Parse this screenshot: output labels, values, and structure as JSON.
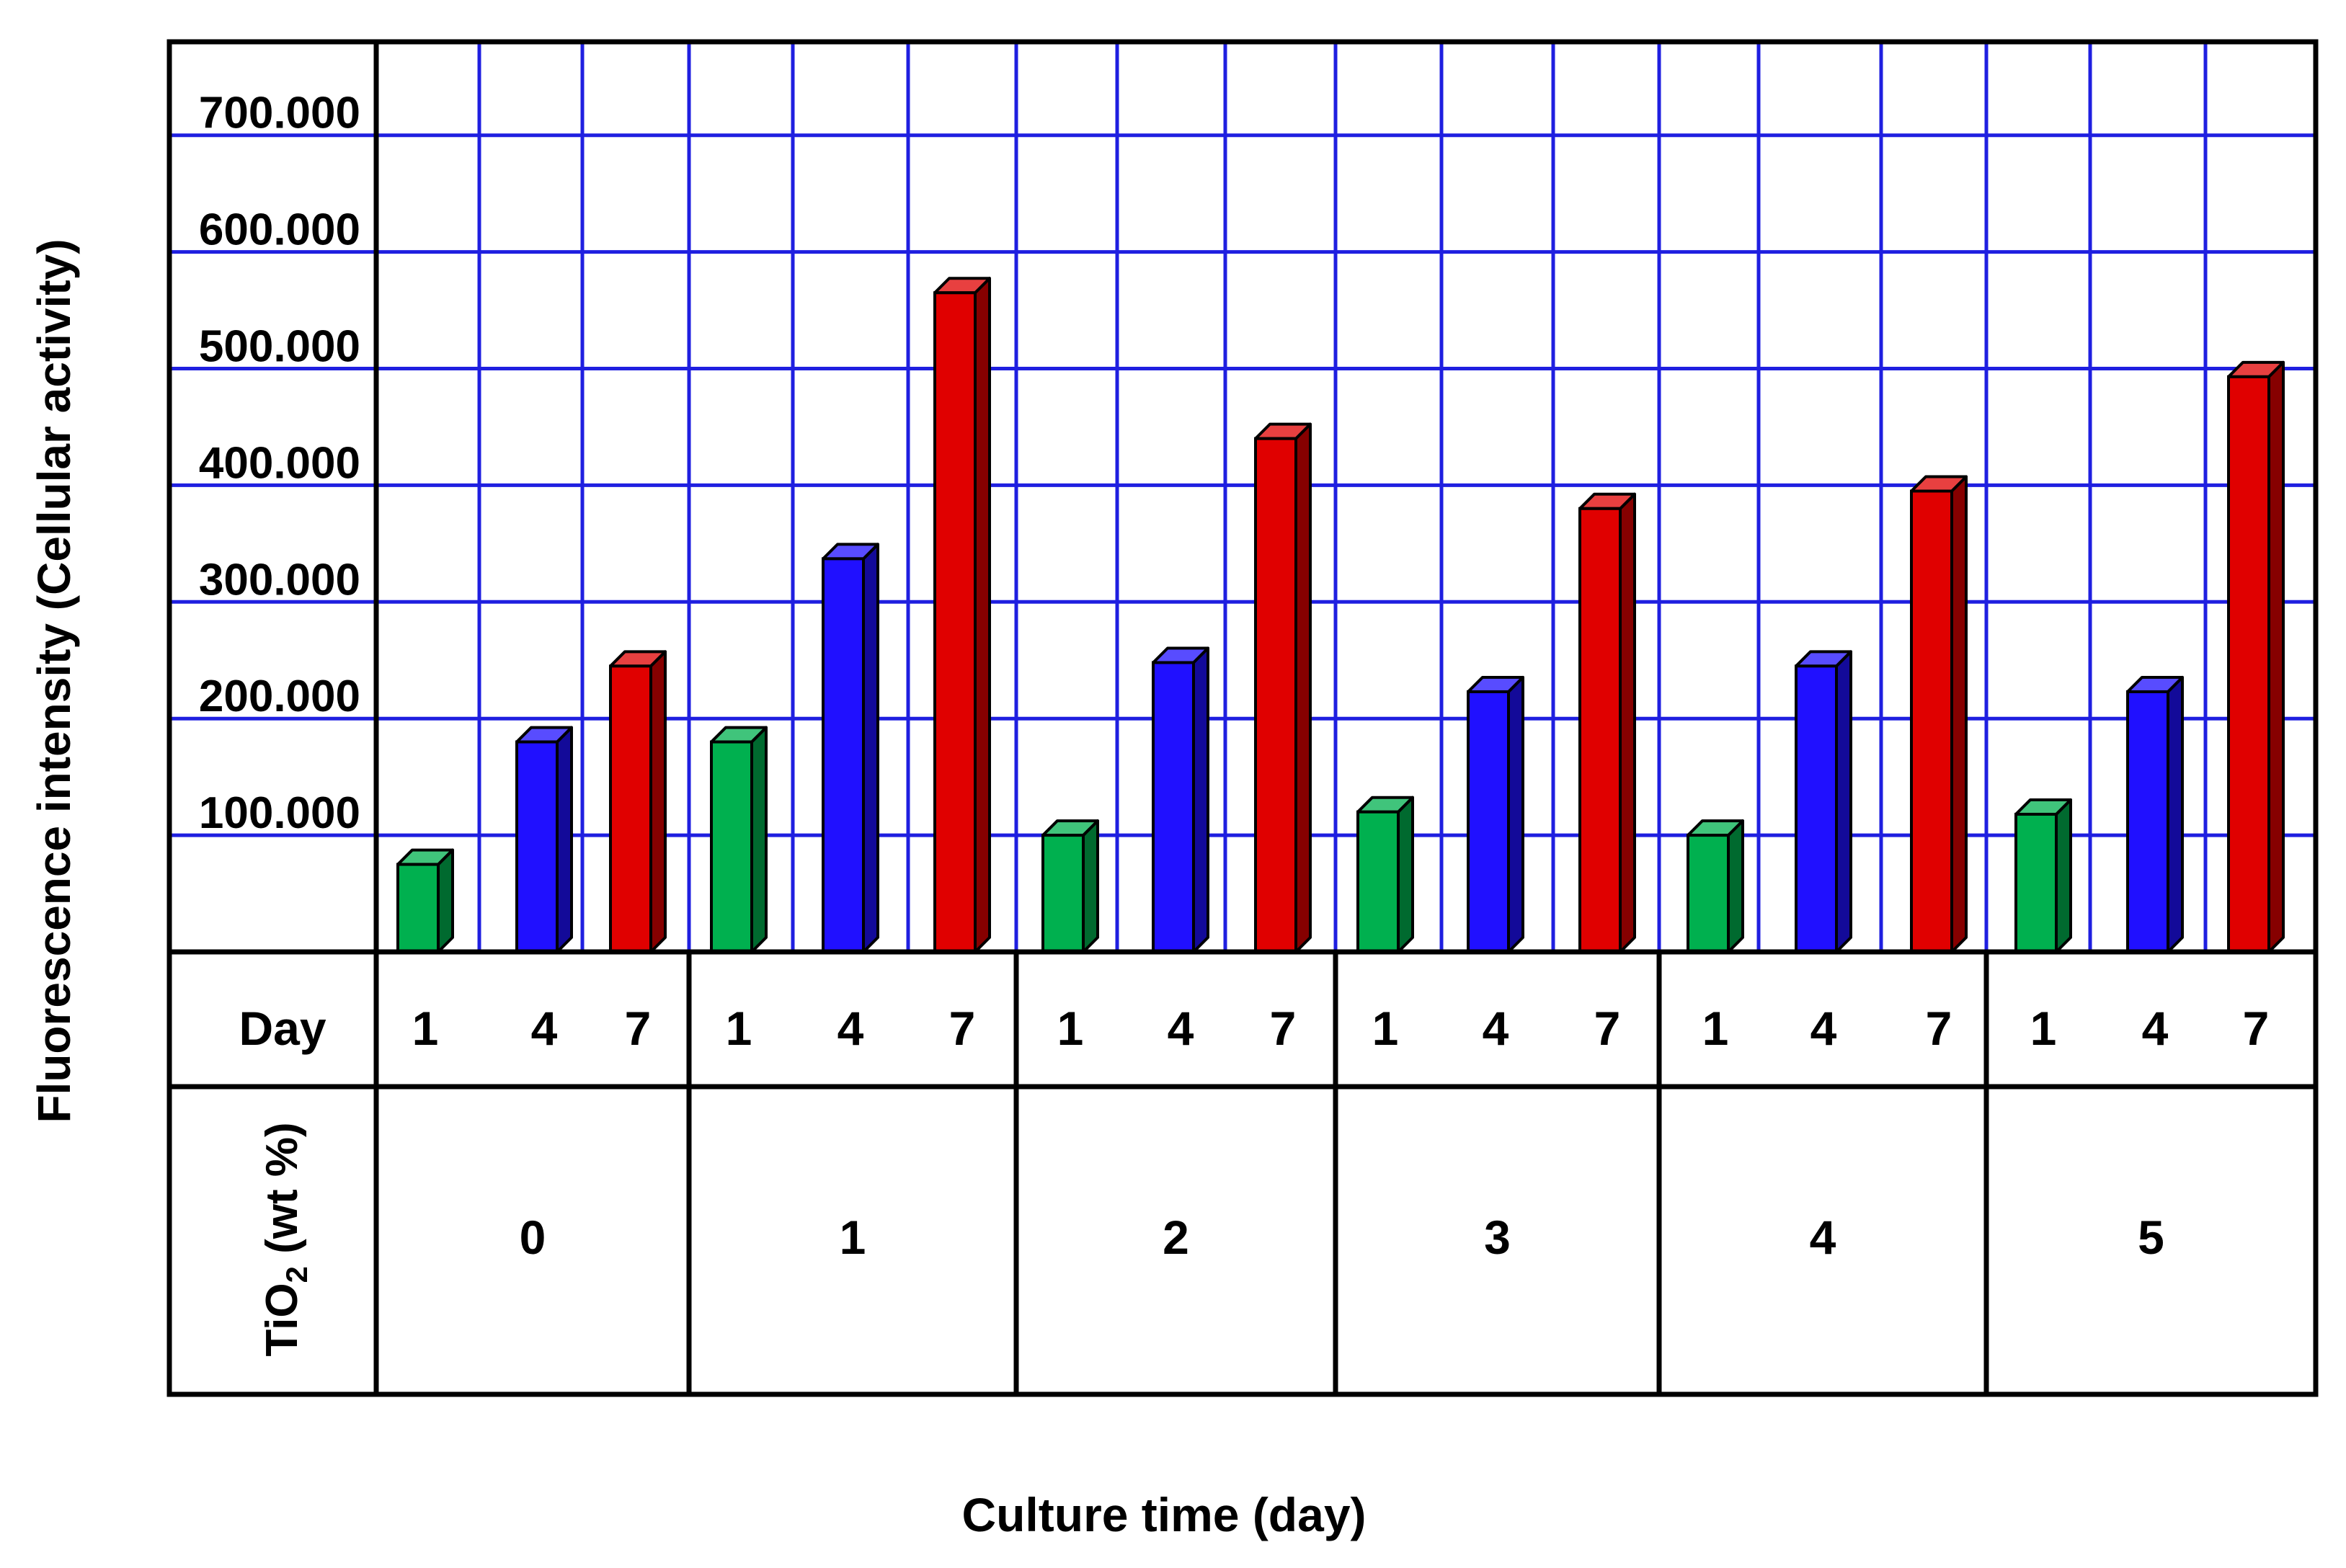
{
  "chart_data": {
    "type": "bar",
    "ylabel": "Fluorescence intensity (Cellular activity)",
    "xlabel": "Culture time (day)",
    "row_labels": {
      "day": "Day",
      "tio2_main": "TiO",
      "tio2_sub": "2",
      "tio2_tail": " (wt %)"
    },
    "y_ticks": [
      "100.000",
      "200.000",
      "300.000",
      "400.000",
      "500.000",
      "600.000",
      "700.000"
    ],
    "y_tick_values": [
      100,
      200,
      300,
      400,
      500,
      600,
      700
    ],
    "ylim": [
      0,
      780
    ],
    "grid": true,
    "days": [
      "1",
      "4",
      "7"
    ],
    "groups": [
      {
        "tio2": "0",
        "values": [
          75,
          180,
          245
        ]
      },
      {
        "tio2": "1",
        "values": [
          180,
          337,
          565
        ]
      },
      {
        "tio2": "2",
        "values": [
          100,
          248,
          440
        ]
      },
      {
        "tio2": "3",
        "values": [
          120,
          223,
          380
        ]
      },
      {
        "tio2": "4",
        "values": [
          100,
          245,
          395
        ]
      },
      {
        "tio2": "5",
        "values": [
          118,
          223,
          493
        ]
      }
    ],
    "colors": {
      "day1": "#00b04f",
      "day4": "#2010ff",
      "day7": "#e00000",
      "grid": "#1f1fe0"
    }
  }
}
